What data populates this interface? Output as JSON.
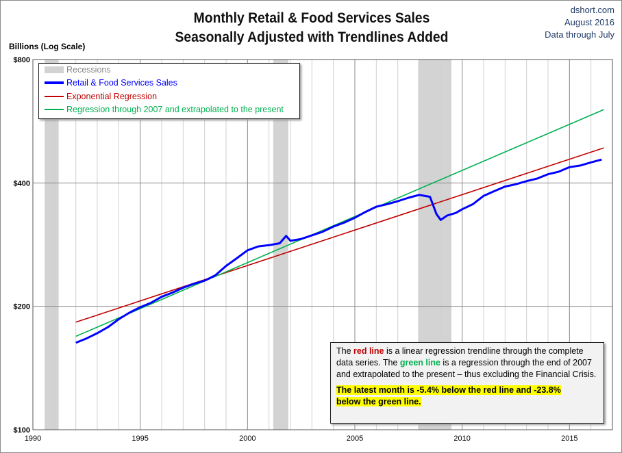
{
  "header": {
    "title_line1": "Monthly Retail & Food Services Sales",
    "title_line2": "Seasonally Adjusted with Trendlines Added",
    "source": "dshort.com",
    "date": "August 2016",
    "data_through": "Data through July"
  },
  "note": {
    "p1_a": "The ",
    "p1_red": "red line",
    "p1_b": " is a  linear regression trendline  through the complete data series. The ",
    "p1_green": "green line",
    "p1_c": " is a regression through the end of 2007  and extrapolated to the present – thus excluding the Financial Crisis.",
    "p2": "The latest month is  -5.4%  below the red line and -23.8% below the green line."
  },
  "chart_data": {
    "type": "line",
    "ylabel": "Billions (Log Scale)",
    "yscale": "log",
    "ylim": [
      100,
      800
    ],
    "xlim": [
      1990,
      2017
    ],
    "yticks": [
      {
        "v": 100,
        "label": "$100"
      },
      {
        "v": 200,
        "label": "$200"
      },
      {
        "v": 400,
        "label": "$400"
      },
      {
        "v": 800,
        "label": "$800"
      }
    ],
    "xticks": [
      {
        "v": 1990,
        "label": "1990"
      },
      {
        "v": 1995,
        "label": "1995"
      },
      {
        "v": 2000,
        "label": "2000"
      },
      {
        "v": 2005,
        "label": "2005"
      },
      {
        "v": 2010,
        "label": "2010"
      },
      {
        "v": 2015,
        "label": "2015"
      }
    ],
    "grid": true,
    "legend_placement": "top-left",
    "recessions": {
      "name": "Recessions",
      "color": "#d3d3d3",
      "periods": [
        [
          1990.55,
          1991.2
        ],
        [
          2001.2,
          2001.9
        ],
        [
          2007.95,
          2009.5
        ]
      ]
    },
    "series": [
      {
        "name": "Retail & Food Services Sales",
        "color": "#0000ff",
        "x": [
          1992.0,
          1992.5,
          1993.0,
          1993.5,
          1994.0,
          1994.5,
          1995.0,
          1995.5,
          1996.0,
          1996.5,
          1997.0,
          1997.5,
          1998.0,
          1998.5,
          1999.0,
          1999.5,
          2000.0,
          2000.5,
          2001.0,
          2001.5,
          2001.8,
          2002.0,
          2002.5,
          2003.0,
          2003.5,
          2004.0,
          2004.5,
          2005.0,
          2005.5,
          2006.0,
          2006.5,
          2007.0,
          2007.5,
          2008.0,
          2008.5,
          2008.8,
          2009.0,
          2009.3,
          2009.7,
          2010.0,
          2010.5,
          2011.0,
          2011.5,
          2012.0,
          2012.5,
          2013.0,
          2013.5,
          2014.0,
          2014.5,
          2015.0,
          2015.5,
          2016.0,
          2016.5
        ],
        "values": [
          163,
          167,
          172,
          178,
          186,
          193,
          199,
          204,
          211,
          216,
          222,
          227,
          231,
          238,
          251,
          262,
          274,
          280,
          282,
          285,
          297,
          289,
          292,
          298,
          304,
          313,
          320,
          329,
          340,
          350,
          355,
          361,
          368,
          374,
          370,
          336,
          325,
          333,
          338,
          345,
          355,
          372,
          382,
          392,
          397,
          404,
          410,
          420,
          426,
          437,
          441,
          449,
          456
        ]
      },
      {
        "name": "Exponential Regression",
        "color": "#c00000",
        "x": [
          1992.0,
          2016.6
        ],
        "values": [
          183,
          487
        ]
      },
      {
        "name": "Regression through 2007 and extrapolated to the present",
        "color": "#00b050",
        "x": [
          1992.0,
          2016.6
        ],
        "values": [
          169,
          604
        ]
      }
    ]
  }
}
